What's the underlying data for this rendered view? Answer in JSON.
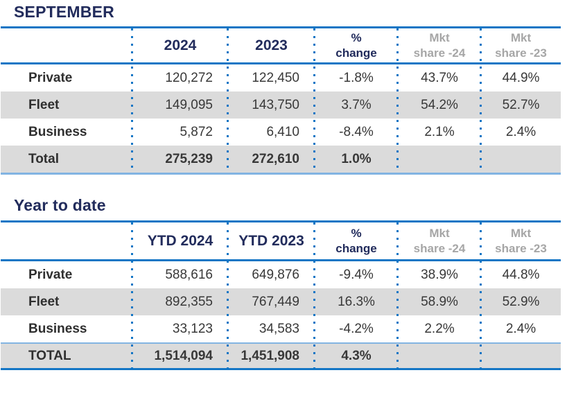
{
  "colors": {
    "navy": "#222C5C",
    "line_blue": "#1476C5",
    "line_light_blue": "#82B4E2",
    "row_shade_gray": "#DBDBDB",
    "header_gray_text": "#A6A6A6",
    "body_text": "#383838"
  },
  "tables": [
    {
      "section_title": "SEPTEMBER",
      "header": {
        "col_2024": "2024",
        "col_2023": "2023",
        "pct_line1": "%",
        "pct_line2": "change",
        "mkt24_line1": "Mkt",
        "mkt24_line2": "share -24",
        "mkt23_line1": "Mkt",
        "mkt23_line2": "share -23"
      },
      "rows": [
        {
          "label": "Private",
          "y1": "120,272",
          "y2": "122,450",
          "pct": "-1.8%",
          "mkt24": "43.7%",
          "mkt23": "44.9%"
        },
        {
          "label": "Fleet",
          "y1": "149,095",
          "y2": "143,750",
          "pct": "3.7%",
          "mkt24": "54.2%",
          "mkt23": "52.7%"
        },
        {
          "label": "Business",
          "y1": "5,872",
          "y2": "6,410",
          "pct": "-8.4%",
          "mkt24": "2.1%",
          "mkt23": "2.4%"
        },
        {
          "label": "Total",
          "y1": "275,239",
          "y2": "272,610",
          "pct": "1.0%",
          "mkt24": "",
          "mkt23": ""
        }
      ]
    },
    {
      "section_title": "Year to date",
      "header": {
        "col_2024": "YTD 2024",
        "col_2023": "YTD 2023",
        "pct_line1": "%",
        "pct_line2": "change",
        "mkt24_line1": "Mkt",
        "mkt24_line2": "share -24",
        "mkt23_line1": "Mkt",
        "mkt23_line2": "share -23"
      },
      "rows": [
        {
          "label": "Private",
          "y1": "588,616",
          "y2": "649,876",
          "pct": "-9.4%",
          "mkt24": "38.9%",
          "mkt23": "44.8%"
        },
        {
          "label": "Fleet",
          "y1": "892,355",
          "y2": "767,449",
          "pct": "16.3%",
          "mkt24": "58.9%",
          "mkt23": "52.9%"
        },
        {
          "label": "Business",
          "y1": "33,123",
          "y2": "34,583",
          "pct": "-4.2%",
          "mkt24": "2.2%",
          "mkt23": "2.4%"
        },
        {
          "label": "TOTAL",
          "y1": "1,514,094",
          "y2": "1,451,908",
          "pct": "4.3%",
          "mkt24": "",
          "mkt23": ""
        }
      ]
    }
  ]
}
